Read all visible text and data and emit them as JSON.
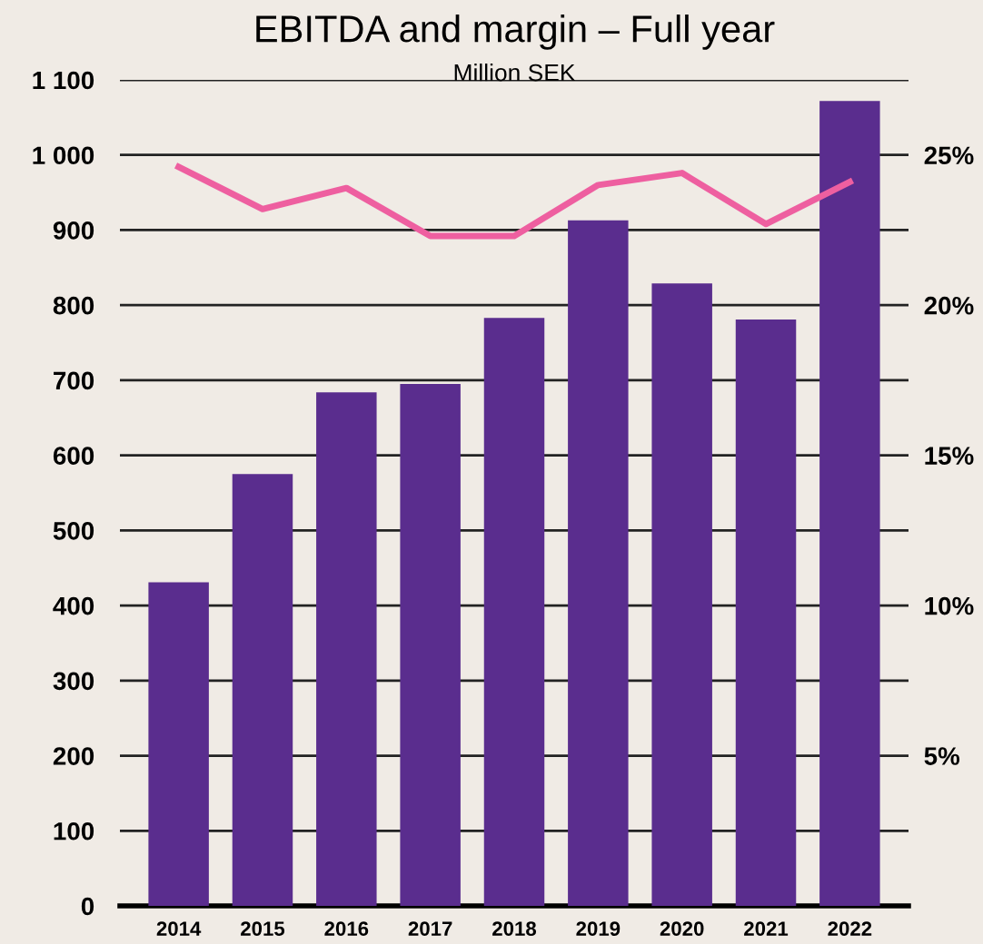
{
  "chart_data": {
    "type": "bar",
    "title": "EBITDA and margin – Full year",
    "subtitle": "Million SEK",
    "categories": [
      "2014",
      "2015",
      "2016",
      "2017",
      "2018",
      "2019",
      "2020",
      "2021",
      "2022"
    ],
    "series": [
      {
        "color": "#5a2d8e",
        "values": [
          431,
          575,
          684,
          695,
          783,
          913,
          829,
          781,
          1072
        ]
      },
      {
        "type": "line",
        "axis": "y2",
        "color": "#ee5fa0",
        "values": [
          24.6,
          23.2,
          23.9,
          22.3,
          22.3,
          24.0,
          24.4,
          22.7,
          24.1
        ]
      }
    ],
    "ylim": [
      0,
      1100
    ],
    "yticks": [
      0,
      {
        "value": 100,
        "label": "100"
      },
      {
        "value": 200,
        "label": "200"
      },
      {
        "value": 300,
        "label": "300"
      },
      {
        "value": 400,
        "label": "400"
      },
      {
        "value": 500,
        "label": "500"
      },
      {
        "value": 600,
        "label": "600"
      },
      {
        "value": 700,
        "label": "700"
      },
      {
        "value": 800,
        "label": "800"
      },
      {
        "value": 900,
        "label": "900"
      },
      {
        "value": 1000,
        "label": "1 000"
      },
      {
        "value": 1100,
        "label": "1 100"
      }
    ],
    "y2lim": [
      0,
      27.5
    ],
    "y2ticks": [
      {
        "value": 5,
        "label": "5%"
      },
      {
        "value": 10,
        "label": "10%"
      },
      {
        "value": 15,
        "label": "15%"
      },
      {
        "value": 20,
        "label": "20%"
      },
      {
        "value": 25,
        "label": "25%"
      }
    ],
    "grid": "y",
    "marker": "none",
    "line_style": "solid"
  }
}
